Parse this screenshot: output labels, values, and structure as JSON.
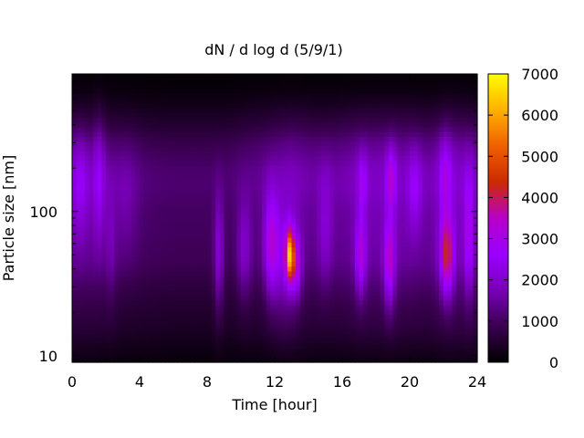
{
  "chart_data": {
    "type": "heatmap",
    "title": "dN / d log d (5/9/1)",
    "xlabel": "Time [hour]",
    "ylabel": "Particle size [nm]",
    "x_range": [
      0,
      24
    ],
    "x_ticks": [
      0,
      4,
      8,
      12,
      16,
      20,
      24
    ],
    "x_minor_ticks": [
      2,
      6,
      10,
      14,
      18,
      22
    ],
    "y_scale": "log",
    "y_range": [
      9,
      900
    ],
    "y_ticks": [
      10,
      100
    ],
    "y_minor_ticks": [
      20,
      30,
      40,
      50,
      60,
      70,
      80,
      90,
      200,
      300,
      400,
      500,
      600,
      700,
      800
    ],
    "colorbar": {
      "range": [
        0,
        7000
      ],
      "ticks": [
        0,
        1000,
        2000,
        3000,
        4000,
        5000,
        6000,
        7000
      ],
      "palette": [
        "#000000",
        "#3a0050",
        "#7800b8",
        "#9a00ff",
        "#b800c8",
        "#cc2a00",
        "#f06000",
        "#ffb000",
        "#ffff00"
      ]
    },
    "grid": false,
    "legend": "colorbar-right",
    "background_level": 700,
    "mode_profile": [
      {
        "d": 9,
        "v": 150
      },
      {
        "d": 12,
        "v": 350
      },
      {
        "d": 16,
        "v": 550
      },
      {
        "d": 22,
        "v": 700
      },
      {
        "d": 30,
        "v": 900
      },
      {
        "d": 45,
        "v": 1200
      },
      {
        "d": 70,
        "v": 1300
      },
      {
        "d": 100,
        "v": 1350
      },
      {
        "d": 150,
        "v": 1500
      },
      {
        "d": 200,
        "v": 1450
      },
      {
        "d": 300,
        "v": 1100
      },
      {
        "d": 400,
        "v": 700
      },
      {
        "d": 550,
        "v": 350
      },
      {
        "d": 700,
        "v": 150
      },
      {
        "d": 900,
        "v": 60
      }
    ],
    "time_modulation": [
      {
        "t": 0,
        "v": 1.15
      },
      {
        "t": 1.5,
        "v": 1.1
      },
      {
        "t": 3,
        "v": 0.85
      },
      {
        "t": 6,
        "v": 0.75
      },
      {
        "t": 9,
        "v": 0.75
      },
      {
        "t": 11,
        "v": 0.95
      },
      {
        "t": 13,
        "v": 1.2
      },
      {
        "t": 15,
        "v": 1.0
      },
      {
        "t": 17,
        "v": 1.25
      },
      {
        "t": 19,
        "v": 1.3
      },
      {
        "t": 21,
        "v": 1.15
      },
      {
        "t": 22.5,
        "v": 1.4
      },
      {
        "t": 24,
        "v": 1.2
      }
    ],
    "events": [
      {
        "t": 0.5,
        "d": 150,
        "amp": 900,
        "wt": 0.35,
        "wd": 0.25
      },
      {
        "t": 1.6,
        "d": 160,
        "amp": 1000,
        "wt": 0.25,
        "wd": 0.3
      },
      {
        "t": 2.3,
        "d": 60,
        "amp": 500,
        "wt": 0.2,
        "wd": 0.3
      },
      {
        "t": 8.7,
        "d": 50,
        "amp": 1200,
        "wt": 0.2,
        "wd": 0.3
      },
      {
        "t": 10.2,
        "d": 55,
        "amp": 900,
        "wt": 0.3,
        "wd": 0.25
      },
      {
        "t": 11.8,
        "d": 60,
        "amp": 1800,
        "wt": 0.3,
        "wd": 0.25
      },
      {
        "t": 12.9,
        "d": 50,
        "amp": 4200,
        "wt": 0.18,
        "wd": 0.13
      },
      {
        "t": 13.3,
        "d": 42,
        "amp": 1600,
        "wt": 0.2,
        "wd": 0.15
      },
      {
        "t": 12.6,
        "d": 45,
        "amp": 900,
        "wt": 0.5,
        "wd": 0.3
      },
      {
        "t": 17.1,
        "d": 50,
        "amp": 1700,
        "wt": 0.22,
        "wd": 0.2
      },
      {
        "t": 17.2,
        "d": 160,
        "amp": 1000,
        "wt": 0.2,
        "wd": 0.15
      },
      {
        "t": 18.8,
        "d": 45,
        "amp": 2000,
        "wt": 0.22,
        "wd": 0.22
      },
      {
        "t": 18.9,
        "d": 170,
        "amp": 1500,
        "wt": 0.2,
        "wd": 0.15
      },
      {
        "t": 22.2,
        "d": 50,
        "amp": 2600,
        "wt": 0.28,
        "wd": 0.2
      },
      {
        "t": 22.1,
        "d": 180,
        "amp": 1100,
        "wt": 0.25,
        "wd": 0.2
      },
      {
        "t": 23.5,
        "d": 70,
        "amp": 1500,
        "wt": 0.2,
        "wd": 0.3
      },
      {
        "t": 3.2,
        "d": 120,
        "amp": 500,
        "wt": 0.5,
        "wd": 0.3
      },
      {
        "t": 15.0,
        "d": 80,
        "amp": 800,
        "wt": 0.3,
        "wd": 0.3
      },
      {
        "t": 20.3,
        "d": 140,
        "amp": 900,
        "wt": 0.3,
        "wd": 0.2
      }
    ]
  }
}
